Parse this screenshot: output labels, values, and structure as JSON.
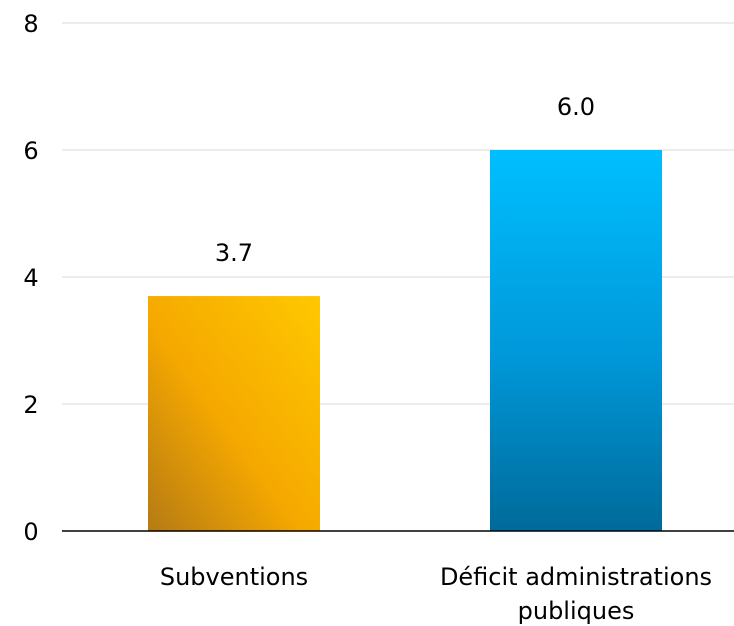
{
  "chart_data": {
    "type": "bar",
    "categories": [
      "Subventions",
      "Déficit administrations publiques"
    ],
    "category_lines": [
      [
        "Subventions"
      ],
      [
        "Déficit administrations",
        "publiques"
      ]
    ],
    "values": [
      3.7,
      6.0
    ],
    "data_labels": [
      "3.7",
      "6.0"
    ],
    "yticks": [
      "0",
      "2",
      "4",
      "6",
      "8"
    ],
    "ylim": [
      0,
      8
    ],
    "grid": true,
    "legend": "none",
    "bar_colors": [
      {
        "light": "#FFC800",
        "mid": "#F5A800",
        "dark": "#B57A14"
      },
      {
        "light": "#00BFFF",
        "mid": "#0097D8",
        "dark": "#006A99"
      }
    ],
    "grid_color": "#D9D9D9",
    "axis_color": "#000000"
  }
}
